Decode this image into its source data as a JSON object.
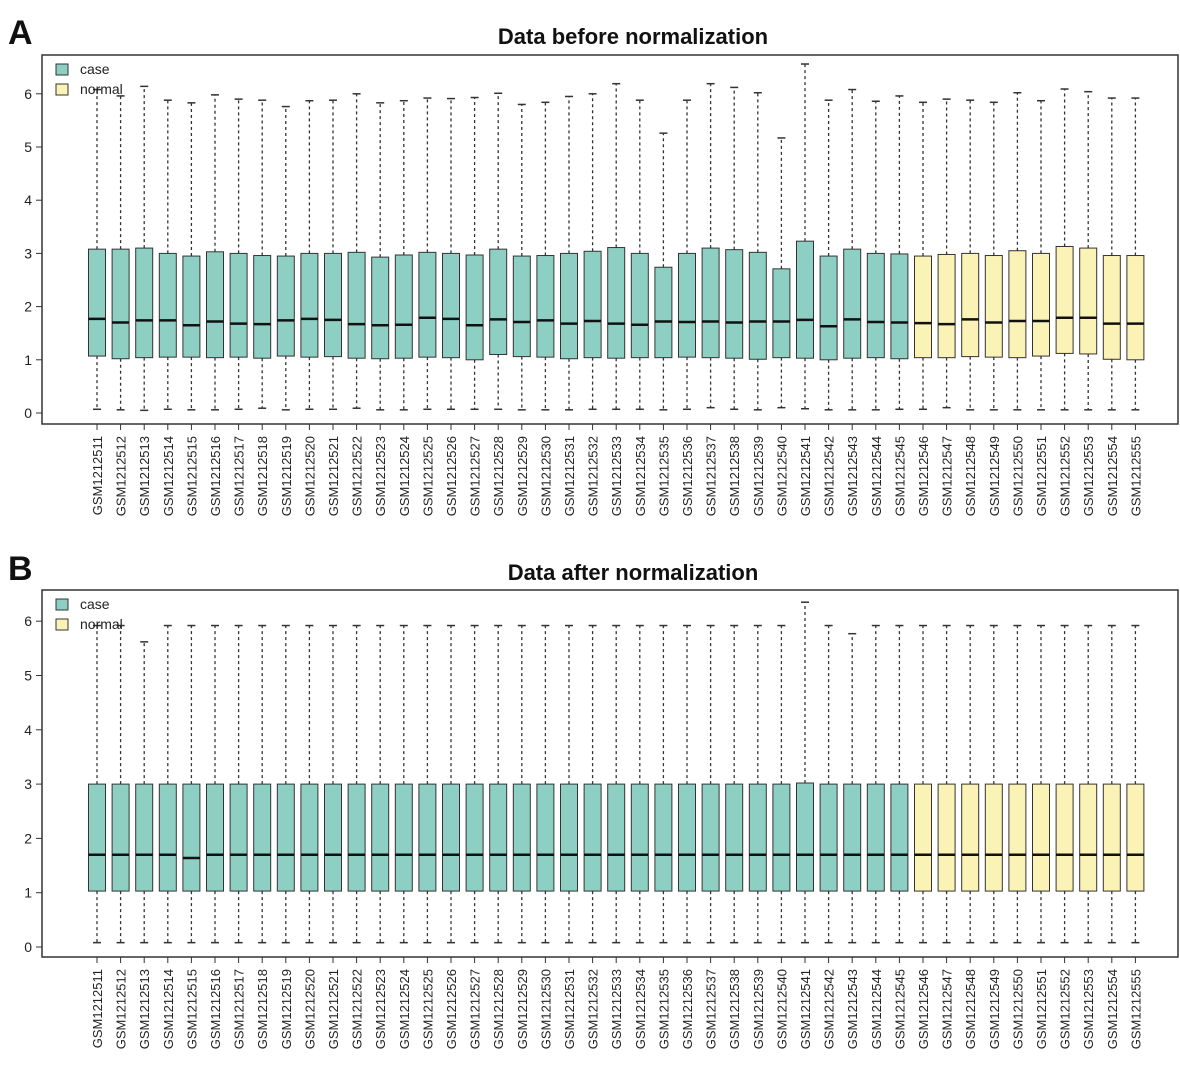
{
  "colors": {
    "case": "#8ecfc3",
    "normal": "#fbf3b5",
    "stroke": "#333333"
  },
  "chart_data": [
    {
      "type": "boxplot",
      "panel": "A",
      "title": "Data before normalization",
      "xlabel": "",
      "ylabel": "",
      "ylim": [
        -0.2,
        6.6
      ],
      "yticks": [
        0,
        1,
        2,
        3,
        4,
        5,
        6
      ],
      "legend": {
        "position": "top-left",
        "entries": [
          "case",
          "normal"
        ]
      },
      "categories": [
        "GSM1212511",
        "GSM1212512",
        "GSM1212513",
        "GSM1212514",
        "GSM1212515",
        "GSM1212516",
        "GSM1212517",
        "GSM1212518",
        "GSM1212519",
        "GSM1212520",
        "GSM1212521",
        "GSM1212522",
        "GSM1212523",
        "GSM1212524",
        "GSM1212525",
        "GSM1212526",
        "GSM1212527",
        "GSM1212528",
        "GSM1212529",
        "GSM1212530",
        "GSM1212531",
        "GSM1212532",
        "GSM1212533",
        "GSM1212534",
        "GSM1212535",
        "GSM1212536",
        "GSM1212537",
        "GSM1212538",
        "GSM1212539",
        "GSM1212540",
        "GSM1212541",
        "GSM1212542",
        "GSM1212543",
        "GSM1212544",
        "GSM1212545",
        "GSM1212546",
        "GSM1212547",
        "GSM1212548",
        "GSM1212549",
        "GSM1212550",
        "GSM1212551",
        "GSM1212552",
        "GSM1212553",
        "GSM1212554",
        "GSM1212555"
      ],
      "groups": [
        "case",
        "case",
        "case",
        "case",
        "case",
        "case",
        "case",
        "case",
        "case",
        "case",
        "case",
        "case",
        "case",
        "case",
        "case",
        "case",
        "case",
        "case",
        "case",
        "case",
        "case",
        "case",
        "case",
        "case",
        "case",
        "case",
        "case",
        "case",
        "case",
        "case",
        "case",
        "case",
        "case",
        "case",
        "case",
        "normal",
        "normal",
        "normal",
        "normal",
        "normal",
        "normal",
        "normal",
        "normal",
        "normal",
        "normal"
      ],
      "q1": [
        1.07,
        1.02,
        1.04,
        1.05,
        1.05,
        1.04,
        1.05,
        1.03,
        1.07,
        1.05,
        1.06,
        1.03,
        1.02,
        1.03,
        1.05,
        1.04,
        1.0,
        1.1,
        1.06,
        1.05,
        1.02,
        1.04,
        1.03,
        1.04,
        1.04,
        1.05,
        1.04,
        1.03,
        1.01,
        1.04,
        1.03,
        1.0,
        1.03,
        1.04,
        1.02,
        1.04,
        1.04,
        1.06,
        1.05,
        1.04,
        1.07,
        1.12,
        1.11,
        1.01,
        1.0
      ],
      "median": [
        1.77,
        1.7,
        1.74,
        1.74,
        1.65,
        1.72,
        1.68,
        1.67,
        1.74,
        1.77,
        1.75,
        1.67,
        1.65,
        1.66,
        1.79,
        1.77,
        1.65,
        1.76,
        1.71,
        1.74,
        1.68,
        1.73,
        1.68,
        1.66,
        1.72,
        1.71,
        1.72,
        1.7,
        1.72,
        1.72,
        1.75,
        1.63,
        1.76,
        1.71,
        1.7,
        1.69,
        1.67,
        1.76,
        1.7,
        1.73,
        1.73,
        1.79,
        1.79,
        1.68,
        1.68
      ],
      "q3": [
        3.08,
        3.08,
        3.1,
        3.0,
        2.95,
        3.03,
        3.0,
        2.96,
        2.95,
        3.0,
        3.0,
        3.02,
        2.93,
        2.97,
        3.02,
        3.0,
        2.97,
        3.08,
        2.95,
        2.96,
        3.0,
        3.04,
        3.11,
        3.0,
        2.74,
        3.0,
        3.1,
        3.07,
        3.02,
        2.71,
        3.23,
        2.95,
        3.08,
        3.0,
        2.99,
        2.95,
        2.98,
        3.0,
        2.96,
        3.05,
        3.0,
        3.13,
        3.1,
        2.96,
        2.96
      ],
      "min": [
        0.07,
        0.06,
        0.05,
        0.07,
        0.06,
        0.06,
        0.07,
        0.09,
        0.06,
        0.07,
        0.07,
        0.09,
        0.06,
        0.06,
        0.07,
        0.07,
        0.07,
        0.07,
        0.06,
        0.06,
        0.06,
        0.07,
        0.07,
        0.07,
        0.06,
        0.07,
        0.1,
        0.07,
        0.06,
        0.1,
        0.08,
        0.06,
        0.06,
        0.06,
        0.07,
        0.07,
        0.1,
        0.06,
        0.06,
        0.06,
        0.06,
        0.06,
        0.06,
        0.06,
        0.06
      ],
      "max": [
        6.08,
        5.96,
        6.14,
        5.88,
        5.83,
        5.98,
        5.9,
        5.88,
        5.76,
        5.87,
        5.88,
        6.0,
        5.83,
        5.87,
        5.92,
        5.91,
        5.93,
        6.01,
        5.8,
        5.84,
        5.95,
        6.0,
        6.19,
        5.88,
        5.26,
        5.88,
        6.19,
        6.12,
        6.02,
        5.17,
        6.56,
        5.88,
        6.08,
        5.86,
        5.96,
        5.84,
        5.9,
        5.88,
        5.84,
        6.02,
        5.87,
        6.09,
        6.04,
        5.92,
        5.92
      ]
    },
    {
      "type": "boxplot",
      "panel": "B",
      "title": "Data after normalization",
      "xlabel": "",
      "ylabel": "",
      "ylim": [
        -0.2,
        6.6
      ],
      "yticks": [
        0,
        1,
        2,
        3,
        4,
        5,
        6
      ],
      "legend": {
        "position": "top-left",
        "entries": [
          "case",
          "normal"
        ]
      },
      "categories": [
        "GSM1212511",
        "GSM1212512",
        "GSM1212513",
        "GSM1212514",
        "GSM1212515",
        "GSM1212516",
        "GSM1212517",
        "GSM1212518",
        "GSM1212519",
        "GSM1212520",
        "GSM1212521",
        "GSM1212522",
        "GSM1212523",
        "GSM1212524",
        "GSM1212525",
        "GSM1212526",
        "GSM1212527",
        "GSM1212528",
        "GSM1212529",
        "GSM1212530",
        "GSM1212531",
        "GSM1212532",
        "GSM1212533",
        "GSM1212534",
        "GSM1212535",
        "GSM1212536",
        "GSM1212537",
        "GSM1212538",
        "GSM1212539",
        "GSM1212540",
        "GSM1212541",
        "GSM1212542",
        "GSM1212543",
        "GSM1212544",
        "GSM1212545",
        "GSM1212546",
        "GSM1212547",
        "GSM1212548",
        "GSM1212549",
        "GSM1212550",
        "GSM1212551",
        "GSM1212552",
        "GSM1212553",
        "GSM1212554",
        "GSM1212555"
      ],
      "groups": [
        "case",
        "case",
        "case",
        "case",
        "case",
        "case",
        "case",
        "case",
        "case",
        "case",
        "case",
        "case",
        "case",
        "case",
        "case",
        "case",
        "case",
        "case",
        "case",
        "case",
        "case",
        "case",
        "case",
        "case",
        "case",
        "case",
        "case",
        "case",
        "case",
        "case",
        "case",
        "case",
        "case",
        "case",
        "case",
        "normal",
        "normal",
        "normal",
        "normal",
        "normal",
        "normal",
        "normal",
        "normal",
        "normal",
        "normal"
      ],
      "q1": [
        1.03,
        1.03,
        1.03,
        1.03,
        1.03,
        1.03,
        1.03,
        1.03,
        1.03,
        1.03,
        1.03,
        1.03,
        1.03,
        1.03,
        1.03,
        1.03,
        1.03,
        1.03,
        1.03,
        1.03,
        1.03,
        1.03,
        1.03,
        1.03,
        1.03,
        1.03,
        1.03,
        1.03,
        1.03,
        1.03,
        1.03,
        1.03,
        1.03,
        1.03,
        1.03,
        1.03,
        1.03,
        1.03,
        1.03,
        1.03,
        1.03,
        1.03,
        1.03,
        1.03,
        1.03
      ],
      "median": [
        1.7,
        1.7,
        1.7,
        1.7,
        1.64,
        1.7,
        1.7,
        1.7,
        1.7,
        1.7,
        1.7,
        1.7,
        1.7,
        1.7,
        1.7,
        1.7,
        1.7,
        1.7,
        1.7,
        1.7,
        1.7,
        1.7,
        1.7,
        1.7,
        1.7,
        1.7,
        1.7,
        1.7,
        1.7,
        1.7,
        1.7,
        1.7,
        1.7,
        1.7,
        1.7,
        1.7,
        1.7,
        1.7,
        1.7,
        1.7,
        1.7,
        1.7,
        1.7,
        1.7,
        1.7
      ],
      "q3": [
        3.0,
        3.0,
        3.0,
        3.0,
        3.0,
        3.0,
        3.0,
        3.0,
        3.0,
        3.0,
        3.0,
        3.0,
        3.0,
        3.0,
        3.0,
        3.0,
        3.0,
        3.0,
        3.0,
        3.0,
        3.0,
        3.0,
        3.0,
        3.0,
        3.0,
        3.0,
        3.0,
        3.0,
        3.0,
        3.0,
        3.02,
        3.0,
        3.0,
        3.0,
        3.0,
        3.0,
        3.0,
        3.0,
        3.0,
        3.0,
        3.0,
        3.0,
        3.0,
        3.0,
        3.0
      ],
      "min": [
        0.08,
        0.08,
        0.08,
        0.08,
        0.08,
        0.08,
        0.08,
        0.08,
        0.08,
        0.08,
        0.08,
        0.08,
        0.08,
        0.08,
        0.08,
        0.08,
        0.08,
        0.08,
        0.08,
        0.08,
        0.08,
        0.08,
        0.08,
        0.08,
        0.08,
        0.08,
        0.08,
        0.08,
        0.08,
        0.08,
        0.08,
        0.08,
        0.08,
        0.08,
        0.08,
        0.08,
        0.08,
        0.08,
        0.08,
        0.08,
        0.08,
        0.08,
        0.08,
        0.08,
        0.08
      ],
      "max": [
        5.92,
        5.92,
        5.62,
        5.92,
        5.92,
        5.92,
        5.92,
        5.92,
        5.92,
        5.92,
        5.92,
        5.92,
        5.92,
        5.92,
        5.92,
        5.92,
        5.92,
        5.92,
        5.92,
        5.92,
        5.92,
        5.92,
        5.92,
        5.92,
        5.92,
        5.92,
        5.92,
        5.92,
        5.92,
        5.92,
        6.35,
        5.92,
        5.77,
        5.92,
        5.92,
        5.92,
        5.92,
        5.92,
        5.92,
        5.92,
        5.92,
        5.92,
        5.92,
        5.92,
        5.92
      ]
    }
  ]
}
